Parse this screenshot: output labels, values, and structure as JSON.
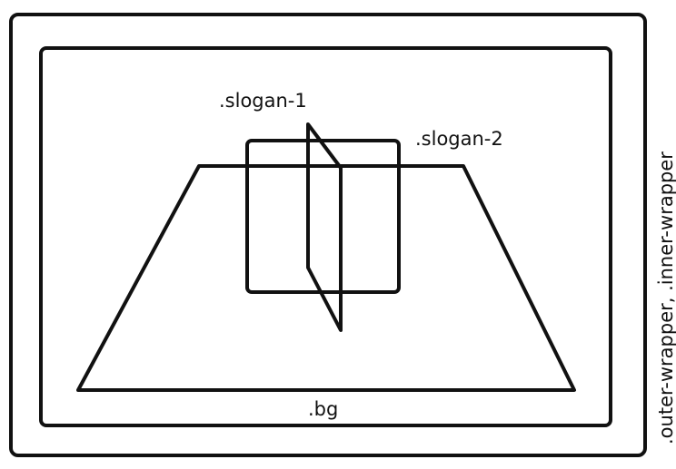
{
  "labels": {
    "slogan_1": ".slogan-1",
    "slogan_2": ".slogan-2",
    "bg": ".bg",
    "wrappers": ".outer-wrapper, .inner-wrapper"
  },
  "colors": {
    "stroke": "#111111",
    "background": "#ffffff"
  }
}
